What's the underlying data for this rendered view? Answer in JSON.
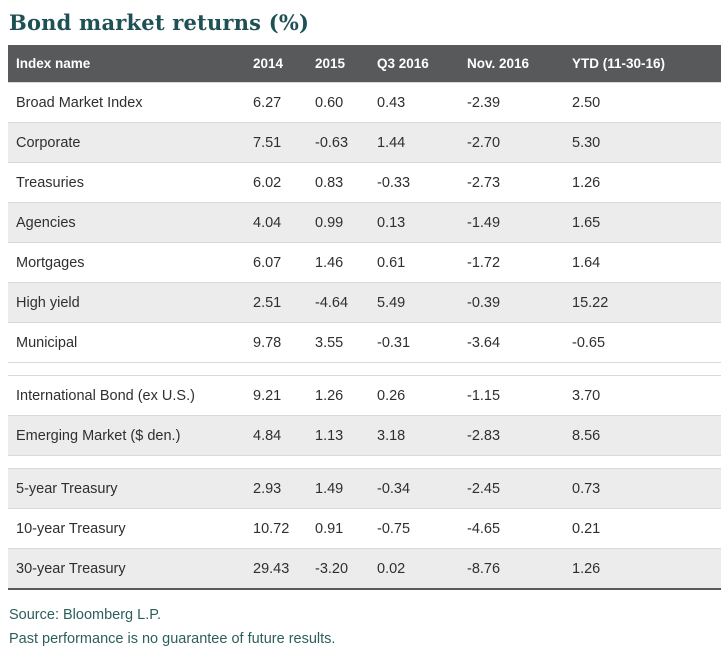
{
  "title": "Bond market returns (%)",
  "chart_data": {
    "type": "table",
    "title": "Bond market returns (%)",
    "columns": [
      "Index name",
      "2014",
      "2015",
      "Q3 2016",
      "Nov. 2016",
      "YTD (11-30-16)"
    ],
    "rows": [
      {
        "name": "Broad Market Index",
        "values": [
          "6.27",
          "0.60",
          "0.43",
          "-2.39",
          "2.50"
        ]
      },
      {
        "name": "Corporate",
        "values": [
          "7.51",
          "-0.63",
          "1.44",
          "-2.70",
          "5.30"
        ]
      },
      {
        "name": "Treasuries",
        "values": [
          "6.02",
          "0.83",
          "-0.33",
          "-2.73",
          "1.26"
        ]
      },
      {
        "name": "Agencies",
        "values": [
          "4.04",
          "0.99",
          "0.13",
          "-1.49",
          "1.65"
        ]
      },
      {
        "name": "Mortgages",
        "values": [
          "6.07",
          "1.46",
          "0.61",
          "-1.72",
          "1.64"
        ]
      },
      {
        "name": "High yield",
        "values": [
          "2.51",
          "-4.64",
          "5.49",
          "-0.39",
          "15.22"
        ]
      },
      {
        "name": "Municipal",
        "values": [
          "9.78",
          "3.55",
          "-0.31",
          "-3.64",
          "-0.65"
        ]
      },
      {
        "spacer": true
      },
      {
        "name": "International Bond (ex U.S.)",
        "values": [
          "9.21",
          "1.26",
          "0.26",
          "-1.15",
          "3.70"
        ]
      },
      {
        "name": "Emerging Market ($ den.)",
        "values": [
          "4.84",
          "1.13",
          "3.18",
          "-2.83",
          "8.56"
        ]
      },
      {
        "spacer": true
      },
      {
        "name": "5-year Treasury",
        "values": [
          "2.93",
          "1.49",
          "-0.34",
          "-2.45",
          "0.73"
        ]
      },
      {
        "name": "10-year Treasury",
        "values": [
          "10.72",
          "0.91",
          "-0.75",
          "-4.65",
          "0.21"
        ]
      },
      {
        "name": "30-year Treasury",
        "values": [
          "29.43",
          "-3.20",
          "0.02",
          "-8.76",
          "1.26"
        ]
      }
    ]
  },
  "footer": {
    "source": "Source: Bloomberg L.P.",
    "disclaimer": "Past performance is no guarantee of future results."
  },
  "colors": {
    "title_text": "#1e5155",
    "header_bg": "#58595b",
    "header_text": "#ffffff",
    "row_alt_bg": "#ececec",
    "row_border": "#d9d9d9",
    "body_text": "#2f2f2f",
    "footer_text": "#2c5f5c",
    "table_bottom_border": "#58595b"
  }
}
